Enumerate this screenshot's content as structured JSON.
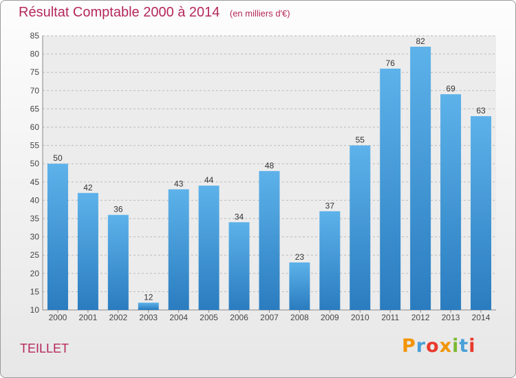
{
  "header": {
    "title": "Résultat Comptable 2000 à 2014",
    "subtitle": "(en milliers d'€)"
  },
  "commune": "TEILLET",
  "logo": {
    "text": "Proxiti"
  },
  "colors": {
    "title": "#b5275a",
    "bar_top": "#5db2ea",
    "bar_bottom": "#2a7cbf",
    "grid": "#b9b9b9"
  },
  "chart_data": {
    "type": "bar",
    "categories": [
      "2000",
      "2001",
      "2002",
      "2003",
      "2004",
      "2005",
      "2006",
      "2007",
      "2008",
      "2009",
      "2010",
      "2011",
      "2012",
      "2013",
      "2014"
    ],
    "values": [
      50,
      42,
      36,
      12,
      43,
      44,
      34,
      48,
      23,
      37,
      55,
      76,
      82,
      69,
      63
    ],
    "ylim": [
      10,
      85
    ],
    "yticks": [
      10,
      15,
      20,
      25,
      30,
      35,
      40,
      45,
      50,
      55,
      60,
      65,
      70,
      75,
      80,
      85
    ],
    "grid": true,
    "data_labels": true
  }
}
